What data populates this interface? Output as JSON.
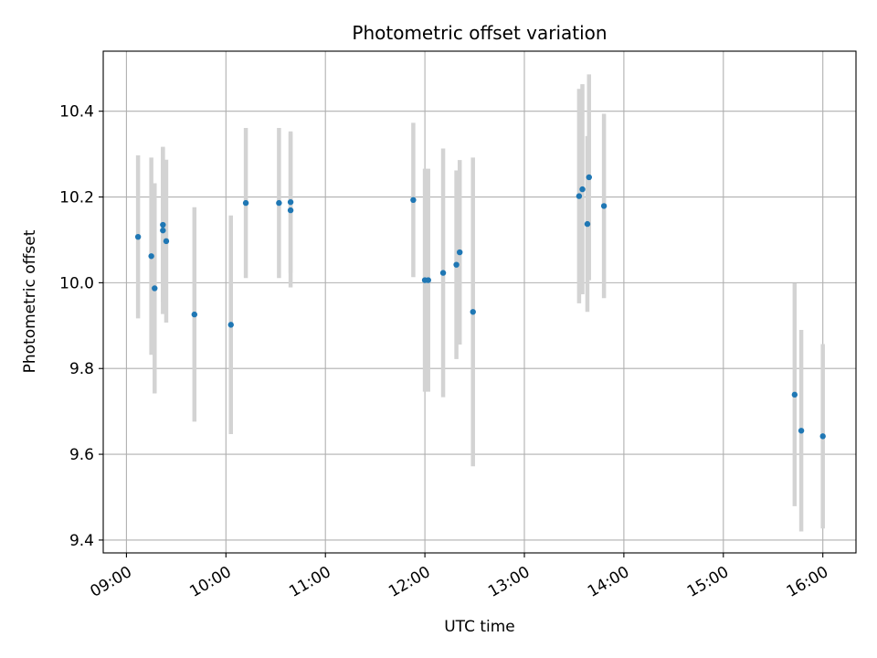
{
  "chart_data": {
    "type": "scatter",
    "title": "Photometric offset variation",
    "xlabel": "UTC time",
    "ylabel": "Photometric offset",
    "x_tick_labels": [
      "09:00",
      "10:00",
      "11:00",
      "12:00",
      "13:00",
      "14:00",
      "15:00",
      "16:00"
    ],
    "y_tick_labels": [
      "9.4",
      "9.6",
      "9.8",
      "10.0",
      "10.2",
      "10.4"
    ],
    "y_ticks": [
      9.4,
      9.6,
      9.8,
      10.0,
      10.2,
      10.4
    ],
    "xlim": [
      "08:46",
      "16:20"
    ],
    "ylim": [
      9.37,
      10.54
    ],
    "grid": true,
    "marker_color": "#1f77b4",
    "errorbar_color": "#d3d3d3",
    "points": [
      {
        "x": "09:07",
        "y": 10.107,
        "err": 0.19
      },
      {
        "x": "09:15",
        "y": 10.062,
        "err": 0.23
      },
      {
        "x": "09:17",
        "y": 9.987,
        "err": 0.245
      },
      {
        "x": "09:22",
        "y": 10.122,
        "err": 0.195
      },
      {
        "x": "09:22",
        "y": 10.135,
        "err": 0.18
      },
      {
        "x": "09:24",
        "y": 10.097,
        "err": 0.19
      },
      {
        "x": "09:41",
        "y": 9.926,
        "err": 0.25
      },
      {
        "x": "10:03",
        "y": 9.902,
        "err": 0.255
      },
      {
        "x": "10:12",
        "y": 10.186,
        "err": 0.175
      },
      {
        "x": "10:32",
        "y": 10.186,
        "err": 0.175
      },
      {
        "x": "10:39",
        "y": 10.188,
        "err": 0.165
      },
      {
        "x": "10:39",
        "y": 10.169,
        "err": 0.18
      },
      {
        "x": "11:53",
        "y": 10.193,
        "err": 0.18
      },
      {
        "x": "12:00",
        "y": 10.006,
        "err": 0.26
      },
      {
        "x": "12:02",
        "y": 10.006,
        "err": 0.26
      },
      {
        "x": "12:11",
        "y": 10.023,
        "err": 0.29
      },
      {
        "x": "12:19",
        "y": 10.042,
        "err": 0.22
      },
      {
        "x": "12:21",
        "y": 10.071,
        "err": 0.215
      },
      {
        "x": "12:29",
        "y": 9.932,
        "err": 0.36
      },
      {
        "x": "13:33",
        "y": 10.202,
        "err": 0.25
      },
      {
        "x": "13:35",
        "y": 10.218,
        "err": 0.245
      },
      {
        "x": "13:38",
        "y": 10.137,
        "err": 0.205
      },
      {
        "x": "13:39",
        "y": 10.246,
        "err": 0.24
      },
      {
        "x": "13:48",
        "y": 10.179,
        "err": 0.215
      },
      {
        "x": "15:43",
        "y": 9.739,
        "err": 0.26
      },
      {
        "x": "15:47",
        "y": 9.655,
        "err": 0.235
      },
      {
        "x": "16:00",
        "y": 9.642,
        "err": 0.215
      }
    ]
  }
}
